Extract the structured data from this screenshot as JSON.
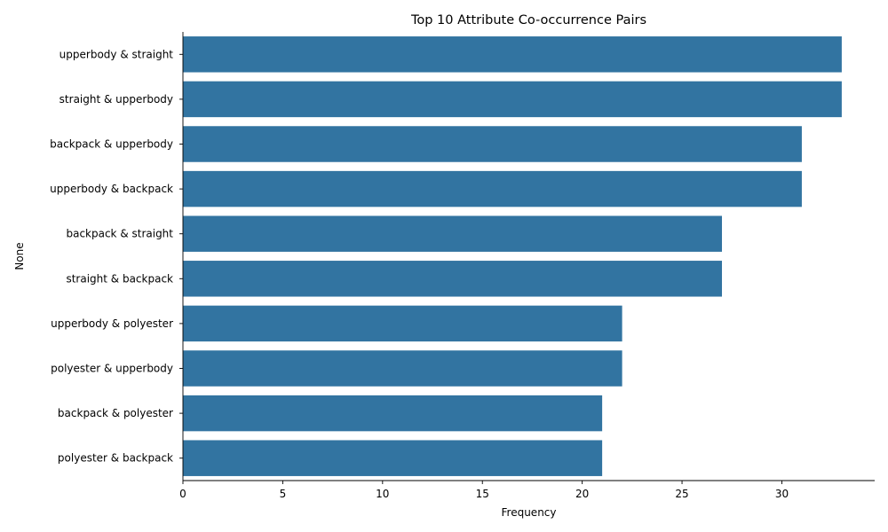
{
  "chart_data": {
    "type": "bar",
    "orientation": "horizontal",
    "title": "Top 10 Attribute Co-occurrence Pairs",
    "xlabel": "Frequency",
    "ylabel": "None",
    "categories": [
      "upperbody & straight",
      "straight & upperbody",
      "backpack & upperbody",
      "upperbody & backpack",
      "backpack & straight",
      "straight & backpack",
      "upperbody & polyester",
      "polyester & upperbody",
      "backpack & polyester",
      "polyester & backpack"
    ],
    "values": [
      33,
      33,
      31,
      31,
      27,
      27,
      22,
      22,
      21,
      21
    ],
    "xlim": [
      0,
      34.65
    ],
    "xticks": [
      0,
      5,
      10,
      15,
      20,
      25,
      30
    ],
    "grid": false,
    "bar_color": "#3274a1"
  }
}
